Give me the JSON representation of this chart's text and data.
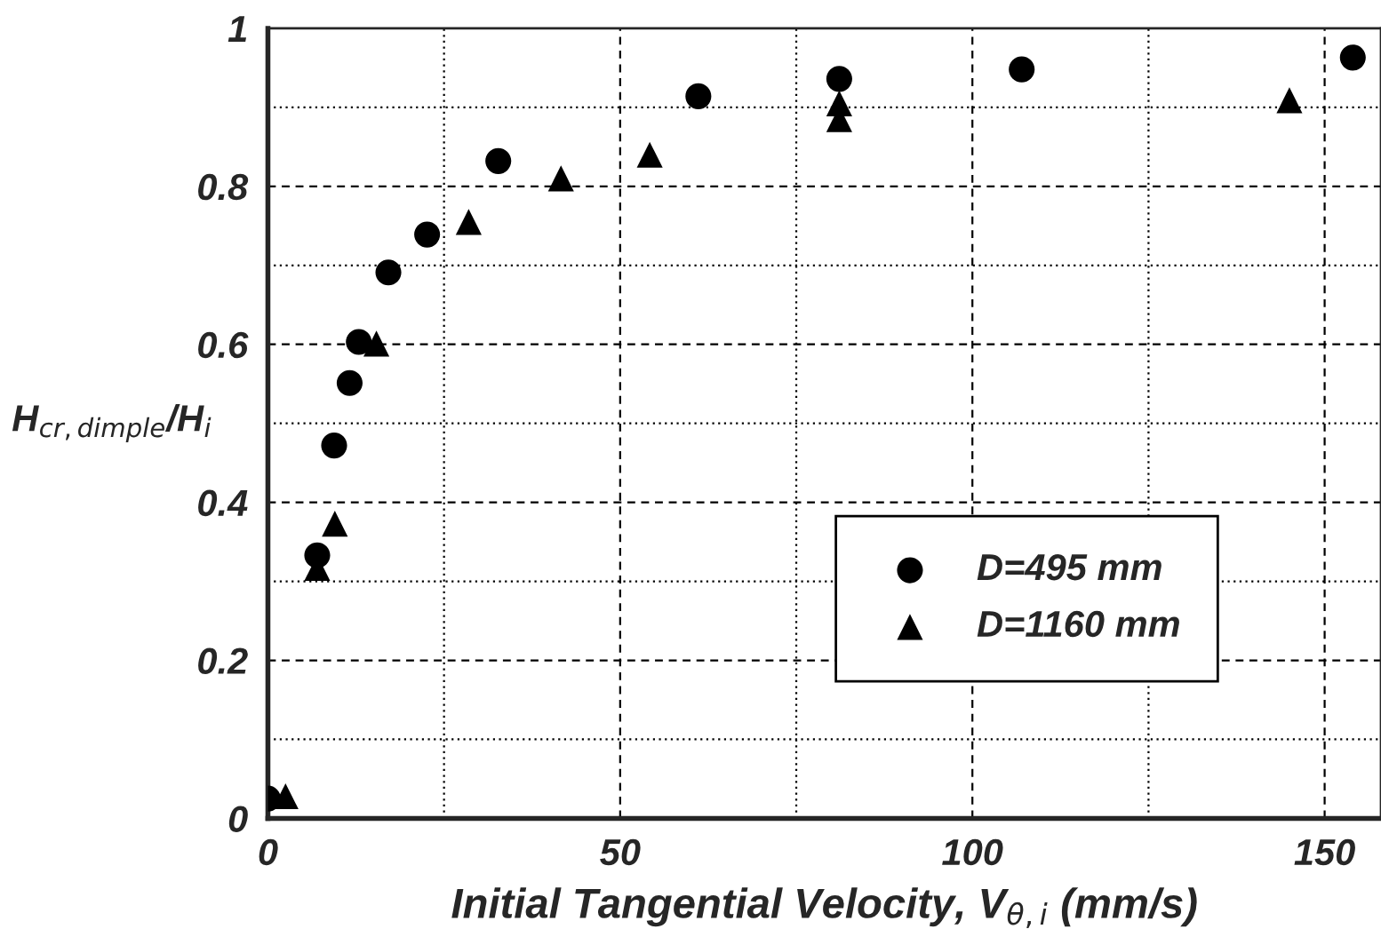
{
  "chart_data": {
    "type": "scatter",
    "xlabel": "Initial Tangential Velocity, V$_{θ,i}$ (mm/s)",
    "ylabel": "H$_{cr,dimple}$/H$_{i}$",
    "xlim": [
      0,
      158
    ],
    "ylim": [
      0,
      1
    ],
    "xticks": [
      0,
      {
        "value": 25,
        "label": null
      },
      50,
      {
        "value": 75,
        "label": null
      },
      100,
      {
        "value": 125,
        "label": null
      },
      150
    ],
    "yticks": [
      0,
      {
        "value": 0.1,
        "label": null
      },
      0.2,
      {
        "value": 0.3,
        "label": null
      },
      0.4,
      {
        "value": 0.5,
        "label": null
      },
      0.6,
      {
        "value": 0.7,
        "label": null
      },
      0.8,
      {
        "value": 0.9,
        "label": null
      },
      1
    ],
    "grid": true,
    "legend": "lower right",
    "series": [
      {
        "name": "D=495 mm",
        "color": "#000000",
        "marker": "circle",
        "x": [
          0,
          7.0,
          9.4,
          11.6,
          12.9,
          17.1,
          22.6,
          32.7,
          61.1,
          81.1,
          107.0,
          154.0
        ],
        "values": [
          0.025,
          0.333,
          0.472,
          0.551,
          0.603,
          0.691,
          0.739,
          0.832,
          0.914,
          0.936,
          0.948,
          0.963
        ]
      },
      {
        "name": "D=1160 mm",
        "color": "#000000",
        "marker": "triangle",
        "x": [
          2.5,
          7.0,
          9.5,
          15.4,
          28.5,
          41.6,
          54.2,
          81.1,
          81.1,
          145.0
        ],
        "values": [
          0.028,
          0.317,
          0.373,
          0.601,
          0.755,
          0.81,
          0.84,
          0.905,
          0.885,
          0.909
        ]
      }
    ]
  }
}
